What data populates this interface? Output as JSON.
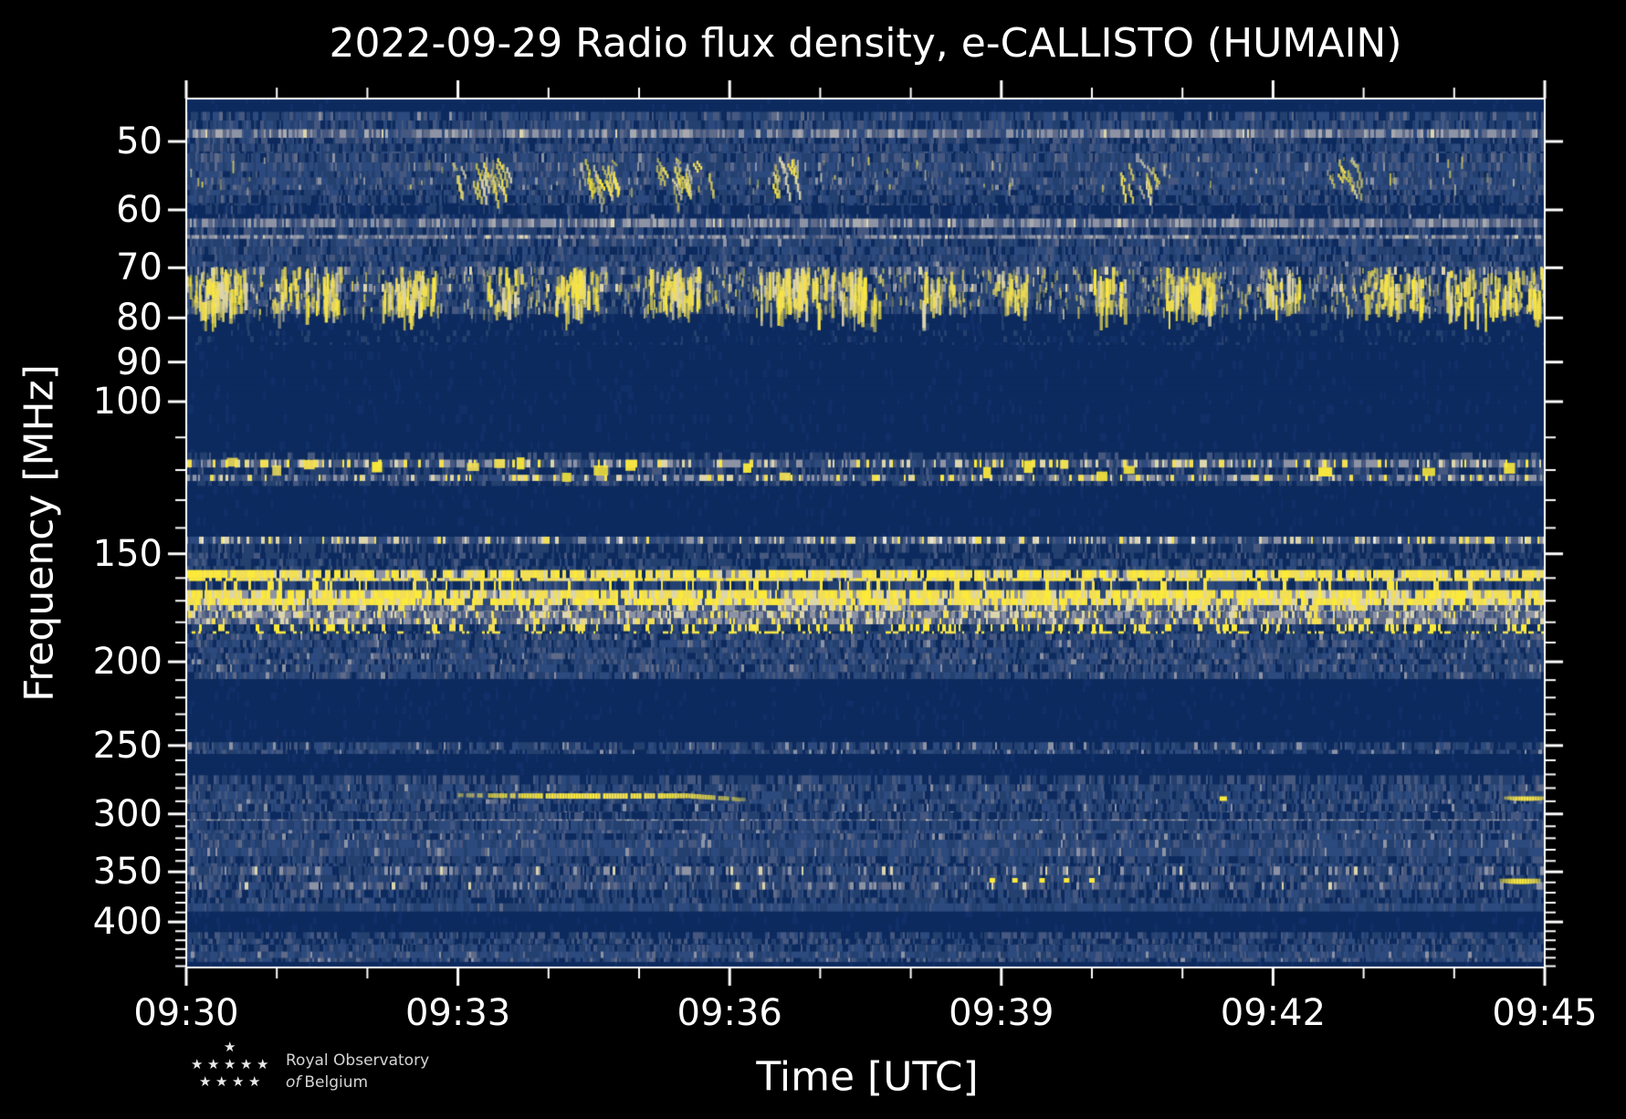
{
  "page": {
    "background": "#000000"
  },
  "chart_data": {
    "type": "heatmap",
    "subtype": "radio-spectrogram",
    "title": "2022-09-29 Radio flux density, e-CALLISTO (HUMAIN)",
    "xlabel": "Time [UTC]",
    "ylabel": "Frequency [MHz]",
    "x_range_minutes": [
      0,
      15
    ],
    "x_ticks_major": [
      {
        "label": "09:30",
        "t": 0
      },
      {
        "label": "09:33",
        "t": 3
      },
      {
        "label": "09:36",
        "t": 6
      },
      {
        "label": "09:39",
        "t": 9
      },
      {
        "label": "09:42",
        "t": 12
      },
      {
        "label": "09:45",
        "t": 15
      }
    ],
    "x_minor_every_min": 1,
    "y_scale": "log",
    "y_range_mhz": [
      44.6,
      451.6
    ],
    "y_ticks_major": [
      50,
      60,
      70,
      80,
      90,
      100,
      150,
      200,
      250,
      300,
      350,
      400
    ],
    "y_ticks_minor": [
      110,
      120,
      130,
      140,
      160,
      170,
      180,
      190,
      210,
      220,
      230,
      240,
      260,
      270,
      280,
      290,
      310,
      320,
      330,
      340,
      360,
      370,
      380,
      390,
      410,
      420,
      430,
      440,
      450
    ],
    "grid": false,
    "legend": "none",
    "palette": {
      "navy": "#0d2a5e",
      "navy2": "#11306a",
      "blue": "#24406f",
      "blue2": "#2d4a7e",
      "slate": "#46587f",
      "slate2": "#5f6b88",
      "gray": "#8d93a4",
      "gray2": "#a7a9ae",
      "cream": "#ddd5ac",
      "white": "#e9e6d8",
      "yellow": "#f2df55",
      "yellow2": "#fcea3a",
      "axis": "#ffffff"
    },
    "styles": {
      "navy": {
        "strat": false,
        "w": [
          [
            "navy",
            0.92
          ],
          [
            "navy2",
            0.08
          ]
        ]
      },
      "navy_faint": {
        "strat": false,
        "w": [
          [
            "navy",
            0.8
          ],
          [
            "navy2",
            0.1
          ],
          [
            "blue",
            0.1
          ]
        ]
      },
      "navy_dash": {
        "strat": true,
        "w": [
          [
            "navy",
            0.55
          ],
          [
            "navy2",
            0.15
          ],
          [
            "blue",
            0.2
          ],
          [
            "slate",
            0.08
          ],
          [
            "gray",
            0.02
          ]
        ]
      },
      "blue_noise": {
        "strat": true,
        "w": [
          [
            "navy",
            0.16
          ],
          [
            "blue",
            0.3
          ],
          [
            "blue2",
            0.3
          ],
          [
            "slate",
            0.16
          ],
          [
            "slate2",
            0.06
          ],
          [
            "gray",
            0.02
          ]
        ]
      },
      "blue_noise_dark": {
        "strat": true,
        "w": [
          [
            "navy",
            0.34
          ],
          [
            "blue",
            0.34
          ],
          [
            "blue2",
            0.2
          ],
          [
            "slate",
            0.1
          ],
          [
            "slate2",
            0.02
          ]
        ]
      },
      "blue_noise_mid": {
        "strat": true,
        "w": [
          [
            "navy",
            0.25
          ],
          [
            "blue",
            0.33
          ],
          [
            "blue2",
            0.25
          ],
          [
            "slate",
            0.12
          ],
          [
            "gray",
            0.05
          ]
        ]
      },
      "blue_noise_stripes": {
        "strat": true,
        "w": [
          [
            "navy",
            0.22
          ],
          [
            "blue",
            0.3
          ],
          [
            "blue2",
            0.26
          ],
          [
            "slate",
            0.14
          ],
          [
            "slate2",
            0.05
          ],
          [
            "gray",
            0.03
          ]
        ]
      },
      "gray_noise": {
        "strat": true,
        "w": [
          [
            "blue2",
            0.16
          ],
          [
            "slate",
            0.2
          ],
          [
            "slate2",
            0.22
          ],
          [
            "gray",
            0.3
          ],
          [
            "gray2",
            0.1
          ],
          [
            "cream",
            0.02
          ]
        ]
      },
      "gray_blue_rows": {
        "strat": true,
        "w": [
          [
            "navy",
            0.1
          ],
          [
            "blue",
            0.24
          ],
          [
            "blue2",
            0.22
          ],
          [
            "slate",
            0.2
          ],
          [
            "slate2",
            0.12
          ],
          [
            "gray",
            0.1
          ],
          [
            "cream",
            0.02
          ]
        ]
      },
      "airband": {
        "strat": true,
        "w": [
          [
            "navy",
            0.22
          ],
          [
            "blue",
            0.18
          ],
          [
            "slate",
            0.14
          ],
          [
            "gray",
            0.22
          ],
          [
            "cream",
            0.12
          ],
          [
            "yellow",
            0.09
          ],
          [
            "yellow2",
            0.03
          ]
        ]
      },
      "speckle2m": {
        "strat": true,
        "w": [
          [
            "navy",
            0.28
          ],
          [
            "blue",
            0.22
          ],
          [
            "slate",
            0.14
          ],
          [
            "gray",
            0.16
          ],
          [
            "cream",
            0.1
          ],
          [
            "yellow",
            0.07
          ],
          [
            "white",
            0.03
          ]
        ]
      },
      "blue_dashes": {
        "strat": true,
        "w": [
          [
            "navy",
            0.3
          ],
          [
            "blue",
            0.28
          ],
          [
            "blue2",
            0.2
          ],
          [
            "slate",
            0.1
          ],
          [
            "yellow",
            0.08
          ],
          [
            "yellow2",
            0.04
          ]
        ]
      },
      "yellow_line": {
        "strat": false,
        "w": [
          [
            "yellow",
            0.42
          ],
          [
            "yellow2",
            0.26
          ],
          [
            "cream",
            0.14
          ],
          [
            "gray",
            0.08
          ],
          [
            "blue",
            0.06
          ],
          [
            "navy",
            0.04
          ]
        ]
      },
      "yellow_band": {
        "strat": false,
        "w": [
          [
            "yellow",
            0.38
          ],
          [
            "yellow2",
            0.3
          ],
          [
            "cream",
            0.16
          ],
          [
            "gray",
            0.1
          ],
          [
            "blue2",
            0.06
          ]
        ]
      },
      "gray_yellow": {
        "strat": false,
        "w": [
          [
            "gray",
            0.26
          ],
          [
            "slate",
            0.2
          ],
          [
            "cream",
            0.18
          ],
          [
            "yellow",
            0.16
          ],
          [
            "blue2",
            0.14
          ],
          [
            "blue",
            0.06
          ]
        ]
      },
      "gray_yellow2": {
        "strat": false,
        "w": [
          [
            "gray",
            0.3
          ],
          [
            "slate2",
            0.2
          ],
          [
            "slate",
            0.16
          ],
          [
            "cream",
            0.12
          ],
          [
            "yellow",
            0.1
          ],
          [
            "blue2",
            0.12
          ]
        ]
      },
      "yellow_dots": {
        "strat": false,
        "w": [
          [
            "navy",
            0.26
          ],
          [
            "blue",
            0.34
          ],
          [
            "blue2",
            0.14
          ],
          [
            "yellow2",
            0.14
          ],
          [
            "yellow",
            0.12
          ]
        ]
      }
    },
    "bands": [
      {
        "f0": 44.6,
        "f1": 46.2,
        "s": "navy"
      },
      {
        "f0": 46.2,
        "f1": 48.4,
        "s": "blue_noise"
      },
      {
        "f0": 48.4,
        "f1": 50.3,
        "s": "gray_noise"
      },
      {
        "f0": 50.3,
        "f1": 51.6,
        "s": "blue_noise"
      },
      {
        "f0": 51.6,
        "f1": 57.7,
        "s": "blue_noise"
      },
      {
        "f0": 57.7,
        "f1": 59.3,
        "s": "blue_noise_dark"
      },
      {
        "f0": 59.3,
        "f1": 61.4,
        "s": "navy_dash"
      },
      {
        "f0": 61.4,
        "f1": 64.8,
        "s": "gray_noise"
      },
      {
        "f0": 64.8,
        "f1": 69.8,
        "s": "blue_noise"
      },
      {
        "f0": 69.8,
        "f1": 79.2,
        "s": "gray_blue_rows"
      },
      {
        "f0": 79.2,
        "f1": 86.0,
        "s": "navy_faint"
      },
      {
        "f0": 86.0,
        "f1": 114.5,
        "s": "navy"
      },
      {
        "f0": 114.5,
        "f1": 125.2,
        "s": "airband"
      },
      {
        "f0": 125.2,
        "f1": 143.3,
        "s": "navy"
      },
      {
        "f0": 143.3,
        "f1": 152.0,
        "s": "speckle2m"
      },
      {
        "f0": 152.0,
        "f1": 156.6,
        "s": "blue_dashes"
      },
      {
        "f0": 156.6,
        "f1": 161.3,
        "s": "yellow_line"
      },
      {
        "f0": 161.3,
        "f1": 165.2,
        "s": "blue_dashes"
      },
      {
        "f0": 165.2,
        "f1": 172.0,
        "s": "yellow_band"
      },
      {
        "f0": 172.0,
        "f1": 174.8,
        "s": "gray_yellow"
      },
      {
        "f0": 174.8,
        "f1": 181.0,
        "s": "gray_yellow2"
      },
      {
        "f0": 181.0,
        "f1": 185.6,
        "s": "yellow_dots"
      },
      {
        "f0": 185.6,
        "f1": 209.4,
        "s": "blue_noise"
      },
      {
        "f0": 209.4,
        "f1": 247.8,
        "s": "navy"
      },
      {
        "f0": 247.8,
        "f1": 255.7,
        "s": "blue_noise_mid"
      },
      {
        "f0": 255.7,
        "f1": 270.6,
        "s": "navy"
      },
      {
        "f0": 270.6,
        "f1": 277.2,
        "s": "gray_noise"
      },
      {
        "f0": 277.2,
        "f1": 292.0,
        "s": "blue_noise"
      },
      {
        "f0": 292.0,
        "f1": 298.5,
        "s": "blue_noise_mid"
      },
      {
        "f0": 298.5,
        "f1": 305.5,
        "s": "gray_noise"
      },
      {
        "f0": 305.5,
        "f1": 316.0,
        "s": "blue_noise"
      },
      {
        "f0": 316.0,
        "f1": 345.0,
        "s": "blue_noise_stripes"
      },
      {
        "f0": 345.0,
        "f1": 367.0,
        "s": "gray_blue_rows"
      },
      {
        "f0": 367.0,
        "f1": 389.0,
        "s": "blue_noise_dark"
      },
      {
        "f0": 389.0,
        "f1": 411.0,
        "s": "navy"
      },
      {
        "f0": 411.0,
        "f1": 425.0,
        "s": "gray_noise"
      },
      {
        "f0": 425.0,
        "f1": 445.0,
        "s": "blue_noise"
      },
      {
        "f0": 445.0,
        "f1": 451.6,
        "s": "navy"
      }
    ],
    "fiber_lanes": [
      {
        "name": "metric-fibers-70-79mhz",
        "f_lo": 69.8,
        "f_hi": 79.2,
        "base_density": 0.5,
        "burst_strength": 30,
        "slant": false,
        "times": [
          0.15,
          0.3,
          0.5,
          1.15,
          1.5,
          2.35,
          2.55,
          3.5,
          4.2,
          4.35,
          5.3,
          5.5,
          6.5,
          6.7,
          6.9,
          7.3,
          7.5,
          8.3,
          9.1,
          10.2,
          11.0,
          11.15,
          12.1,
          13.2,
          13.45,
          14.1,
          14.5,
          14.85
        ]
      },
      {
        "name": "drifting-fibers-52-58mhz",
        "f_lo": 52.0,
        "f_hi": 57.5,
        "base_density": 0.05,
        "burst_strength": 12,
        "slant": true,
        "times": [
          3.1,
          3.35,
          4.5,
          4.65,
          5.35,
          5.6,
          6.6,
          10.5,
          12.8
        ]
      }
    ],
    "events": [
      {
        "kind": "streak",
        "name": "drifting-burst-286mhz",
        "f": 286,
        "t0": 3.0,
        "t1": 6.15,
        "h": 6,
        "sag": 5
      },
      {
        "kind": "dots",
        "name": "spot-288mhz",
        "f": 288,
        "times": [
          11.45
        ],
        "w": 8,
        "h": 5
      },
      {
        "kind": "streak",
        "name": "dashes-288mhz",
        "f": 288,
        "t0": 14.55,
        "t1": 15.0,
        "h": 5,
        "sag": 0
      },
      {
        "kind": "dots",
        "name": "dots-358mhz",
        "f": 358,
        "times": [
          8.9,
          9.15,
          9.45,
          9.72,
          10.0
        ],
        "w": 6,
        "h": 5
      },
      {
        "kind": "streak",
        "name": "dash-359mhz",
        "f": 359,
        "t0": 14.5,
        "t1": 14.95,
        "h": 6,
        "sag": 0
      },
      {
        "kind": "blobs",
        "name": "airband-bright-blobs",
        "f_lo": 115.5,
        "f_hi": 124.0,
        "times": [
          0.5,
          1.0,
          1.35,
          2.1,
          3.15,
          3.45,
          3.7,
          4.2,
          4.55,
          4.9,
          6.2,
          6.6,
          8.85,
          9.3,
          9.7,
          10.1,
          10.4,
          12.55,
          13.7,
          14.6
        ]
      }
    ]
  },
  "logo": {
    "line1": "Royal Observatory",
    "line2_italic": "of",
    "line2_rest": "Belgium",
    "star_rows": [
      1,
      5,
      4
    ],
    "star_glyph": "★"
  }
}
